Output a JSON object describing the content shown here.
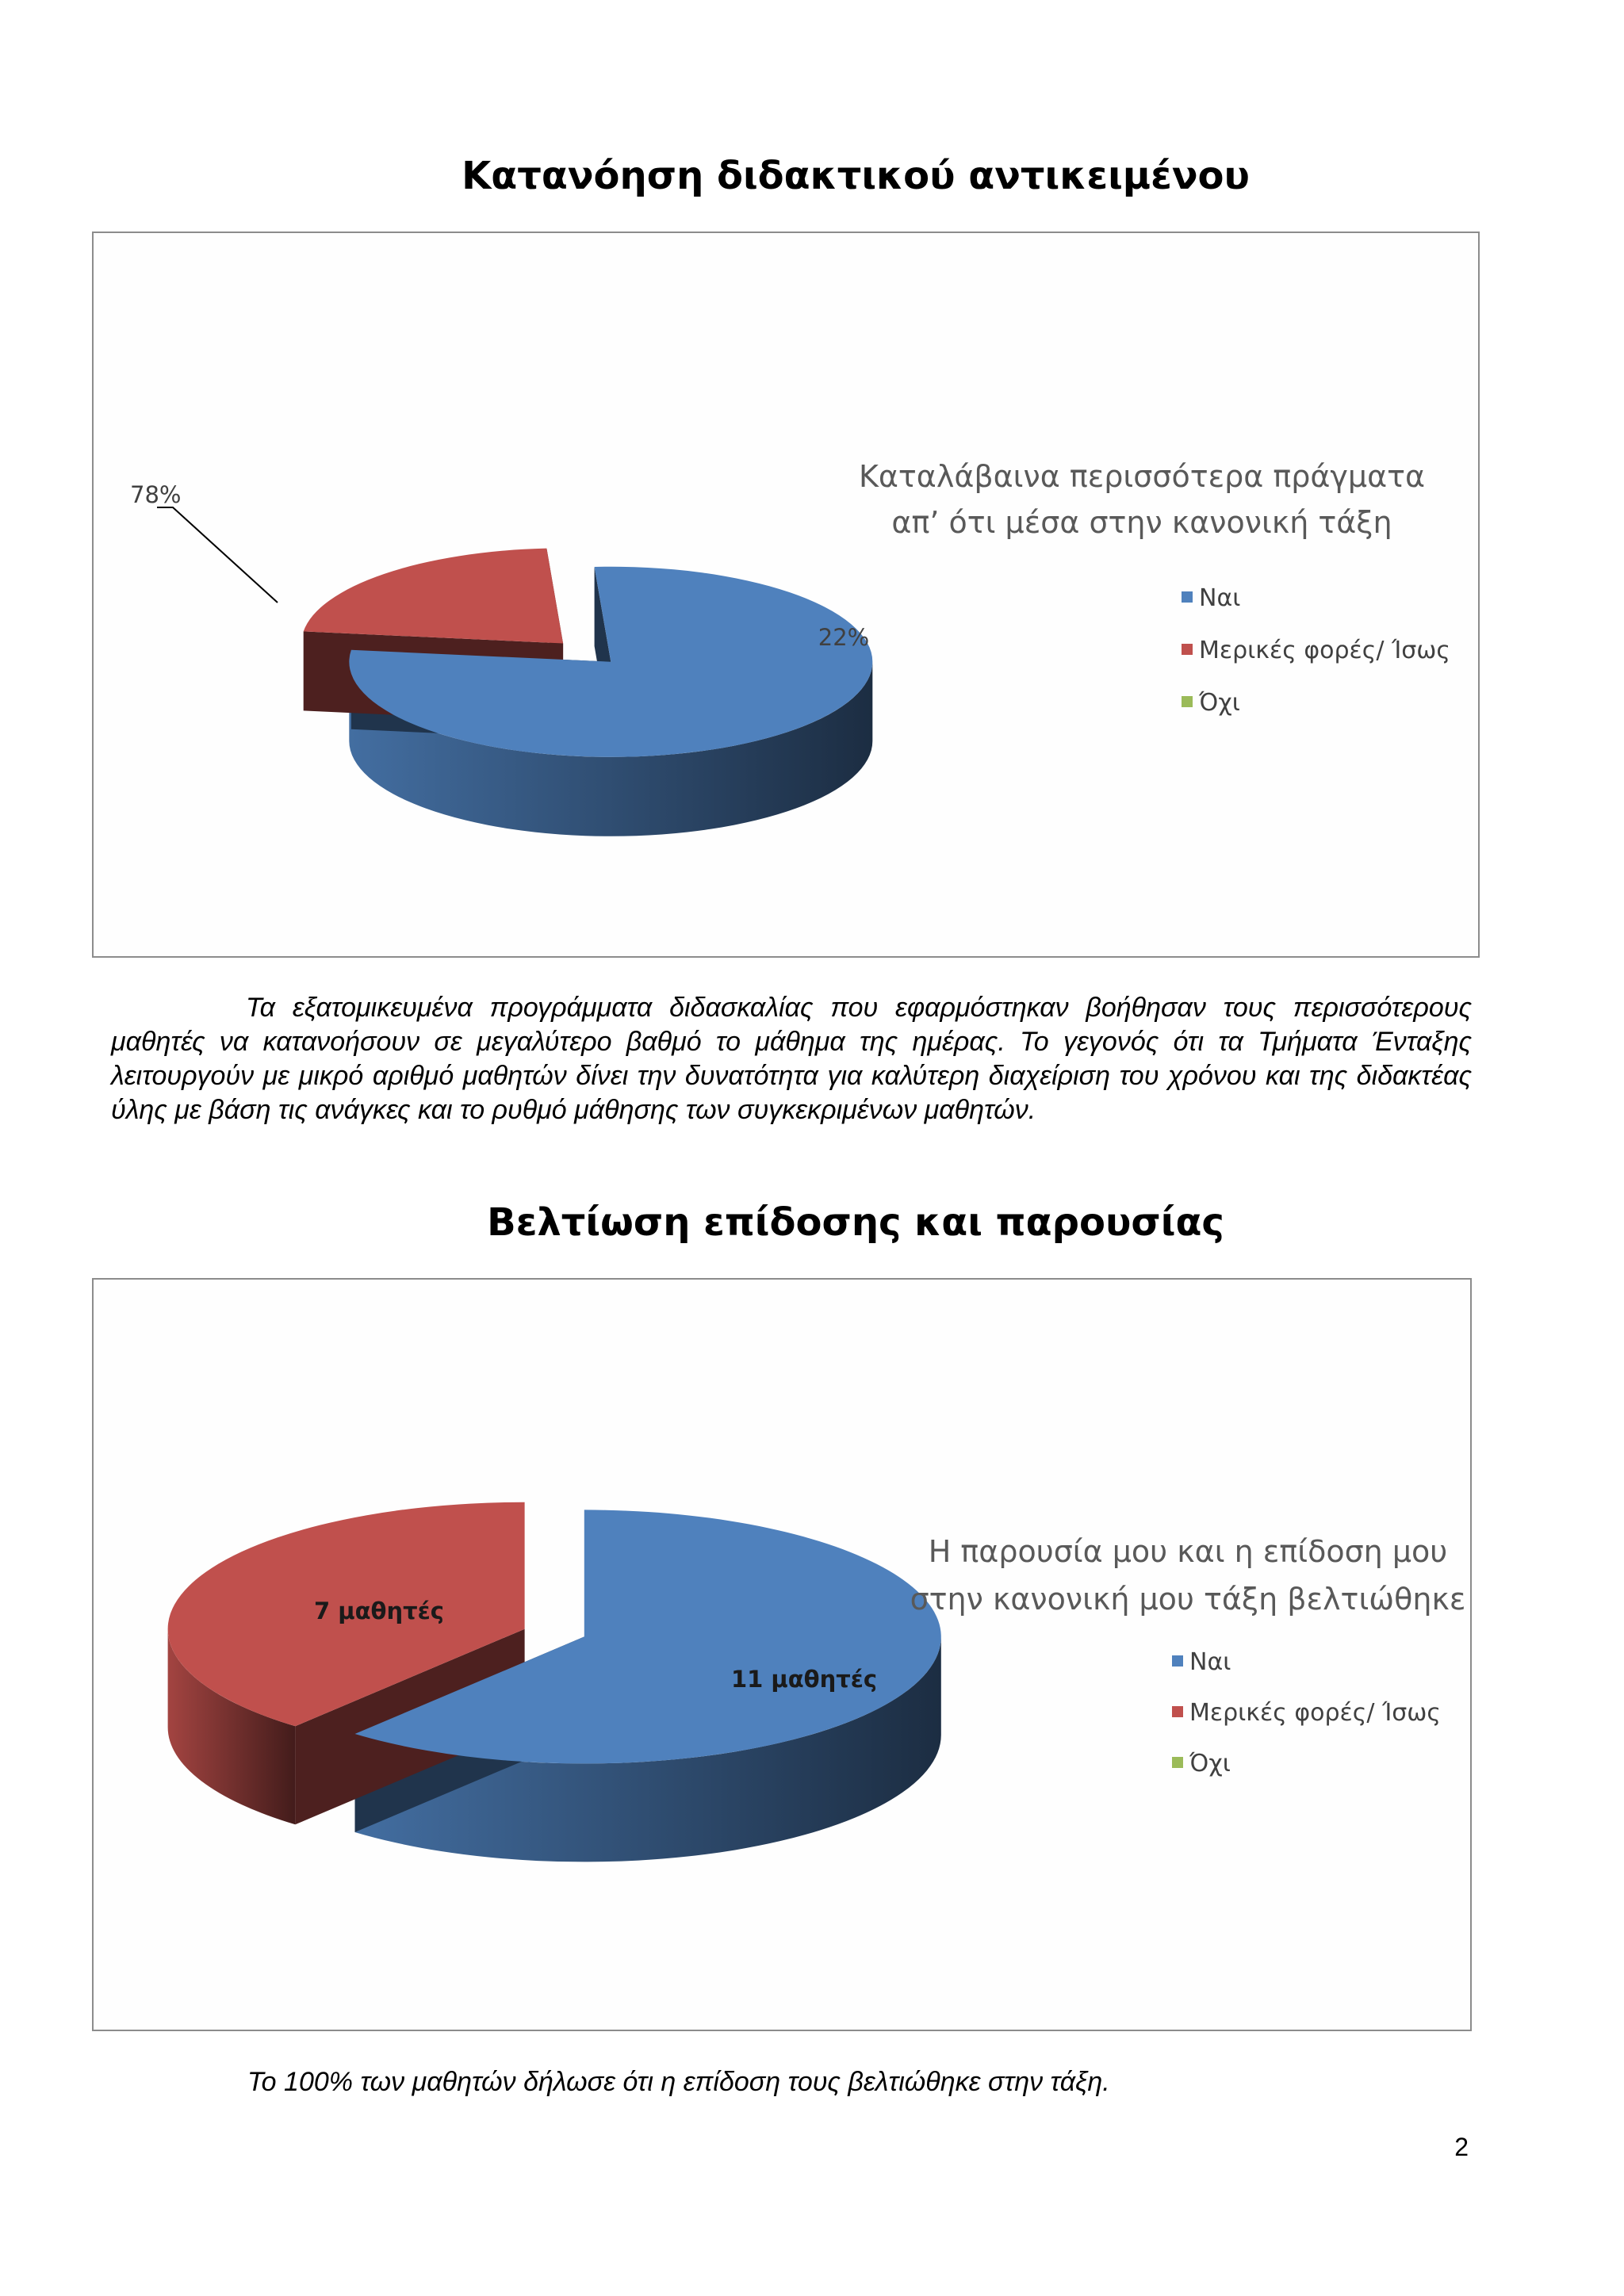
{
  "page": {
    "heading_1": "Κατανόηση διδακτικού αντικειμένου",
    "paragraph_1": "Τα εξατομικευμένα προγράμματα διδασκαλίας που εφαρμόστηκαν βοήθησαν τους περισσότερους μαθητές να κατανοήσουν σε μεγαλύτερο βαθμό το μάθημα της ημέρας. Το γεγονός ότι τα Τμήματα  Ένταξης λειτουργούν με μικρό αριθμό μαθητών δίνει την δυνατότητα για καλύτερη διαχείριση του χρόνου και της διδακτέας ύλης με βάση τις ανάγκες και το ρυθμό μάθησης των συγκεκριμένων μαθητών.",
    "heading_2": "Βελτίωση επίδοσης και παρουσίας",
    "footnote": "Το 100% των μαθητών δήλωσε ότι η επίδοση τους βελτιώθηκε στην τάξη.",
    "page_number": "2"
  },
  "colors": {
    "nai": "#4f81bd",
    "merikes": "#c0504d",
    "ochi": "#9bbb59"
  },
  "chart_data": [
    {
      "type": "pie",
      "style": "3d-exploded",
      "title_lines": [
        "Καταλάβαινα περισσότερα πράγματα",
        "απ’ ότι μέσα στην κανονική τάξη"
      ],
      "legend": [
        "Ναι",
        "Μερικές φορές/ Ίσως",
        "Όχι"
      ],
      "legend_position": "right",
      "series": [
        {
          "name": "Ναι",
          "value": 78,
          "label": "78%"
        },
        {
          "name": "Μερικές φορές/ Ίσως",
          "value": 22,
          "label": "22%"
        },
        {
          "name": "Όχι",
          "value": 0,
          "label": ""
        }
      ]
    },
    {
      "type": "pie",
      "style": "3d-exploded",
      "title_lines": [
        "Η παρουσία μου και η επίδοση μου",
        "στην κανονική μου τάξη βελτιώθηκε"
      ],
      "legend": [
        "Ναι",
        "Μερικές φορές/ Ίσως",
        "Όχι"
      ],
      "legend_position": "right",
      "series": [
        {
          "name": "Ναι",
          "value": 11,
          "label": "11 μαθητές"
        },
        {
          "name": "Μερικές φορές/ Ίσως",
          "value": 7,
          "label": "7 μαθητές"
        },
        {
          "name": "Όχι",
          "value": 0,
          "label": ""
        }
      ]
    }
  ]
}
